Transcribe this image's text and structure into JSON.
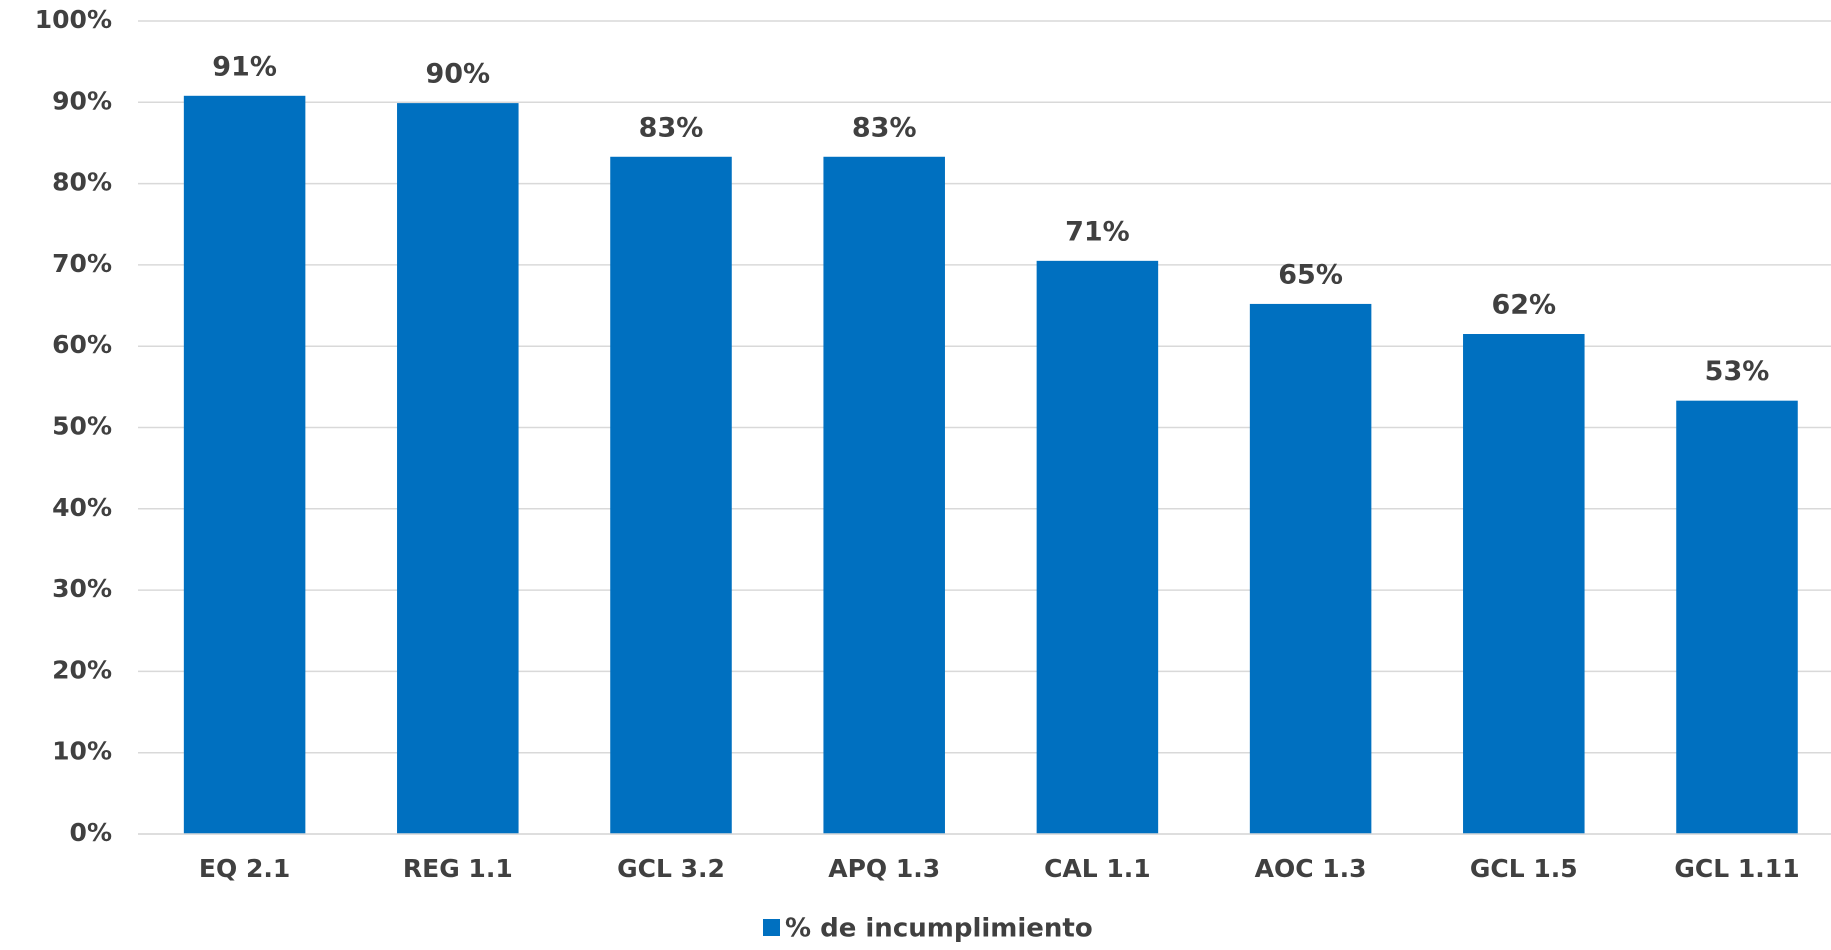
{
  "chart_data": {
    "type": "bar",
    "categories": [
      "EQ 2.1",
      "REG 1.1",
      "GCL 3.2",
      "APQ 1.3",
      "CAL 1.1",
      "AOC 1.3",
      "GCL 1.5",
      "GCL 1.11"
    ],
    "series": [
      {
        "name": "% de incumplimiento",
        "color": "#0070c0",
        "values": [
          90.8,
          89.9,
          83.3,
          83.3,
          70.5,
          65.2,
          61.5,
          53.3
        ],
        "value_labels": [
          "91%",
          "90%",
          "83%",
          "83%",
          "71%",
          "65%",
          "62%",
          "53%"
        ]
      }
    ],
    "ylim": [
      0,
      100
    ],
    "yticks": [
      {
        "value": 0,
        "label": "0%"
      },
      {
        "value": 10,
        "label": "10%"
      },
      {
        "value": 20,
        "label": "20%"
      },
      {
        "value": 30,
        "label": "30%"
      },
      {
        "value": 40,
        "label": "40%"
      },
      {
        "value": 50,
        "label": "50%"
      },
      {
        "value": 60,
        "label": "60%"
      },
      {
        "value": 70,
        "label": "70%"
      },
      {
        "value": 80,
        "label": "80%"
      },
      {
        "value": 90,
        "label": "90%"
      },
      {
        "value": 100,
        "label": "100%"
      }
    ],
    "grid": true,
    "legend": "bottom"
  }
}
